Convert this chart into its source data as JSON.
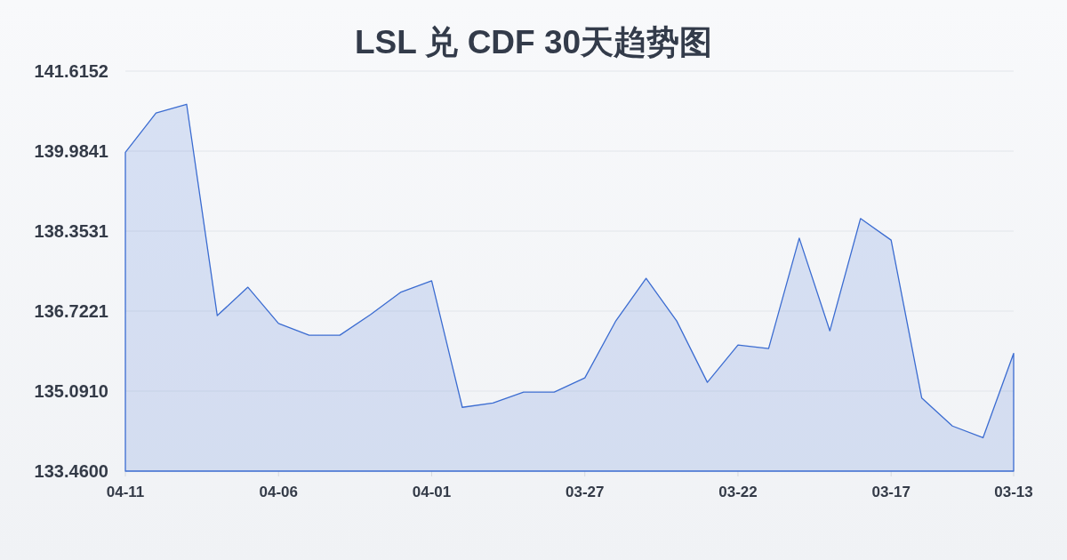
{
  "chart_data": {
    "type": "area",
    "title": "LSL 兑 CDF 30天趋势图",
    "categories": [
      "04-11",
      null,
      null,
      null,
      null,
      "04-06",
      null,
      null,
      null,
      null,
      "04-01",
      null,
      null,
      null,
      null,
      "03-27",
      null,
      null,
      null,
      null,
      "03-22",
      null,
      null,
      null,
      null,
      "03-17",
      null,
      null,
      null,
      "03-13"
    ],
    "series": [
      {
        "color": "#3b6cd1",
        "values": [
          139.96,
          140.76,
          140.94,
          136.63,
          137.21,
          136.47,
          136.23,
          136.23,
          136.65,
          137.11,
          137.34,
          134.76,
          134.85,
          135.07,
          135.07,
          135.36,
          136.51,
          137.39,
          136.52,
          135.27,
          136.03,
          135.96,
          138.21,
          136.32,
          138.61,
          138.17,
          134.95,
          134.38,
          134.14,
          135.86
        ]
      }
    ],
    "ylim": [
      133.46,
      141.6152
    ],
    "yticks": [
      {
        "value": 133.46,
        "label": "133.4600"
      },
      {
        "value": 135.091,
        "label": "135.0910"
      },
      136.7221,
      138.3531,
      139.9841,
      141.6152
    ],
    "grid": "y"
  }
}
